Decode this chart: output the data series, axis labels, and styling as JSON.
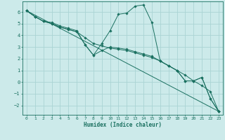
{
  "xlabel": "Humidex (Indice chaleur)",
  "bg_color": "#cceaea",
  "grid_color": "#aad4d4",
  "line_color": "#1a7060",
  "xlim": [
    -0.5,
    23.5
  ],
  "ylim": [
    -2.8,
    6.9
  ],
  "xticks": [
    0,
    1,
    2,
    3,
    4,
    5,
    6,
    7,
    8,
    9,
    10,
    11,
    12,
    13,
    14,
    15,
    16,
    17,
    18,
    19,
    20,
    21,
    22,
    23
  ],
  "yticks": [
    -2,
    -1,
    0,
    1,
    2,
    3,
    4,
    5,
    6
  ],
  "series": [
    {
      "x": [
        0,
        1,
        2,
        3,
        4,
        5,
        6,
        7,
        8,
        9,
        10,
        11,
        12,
        13,
        14,
        15,
        16,
        17,
        18,
        19,
        20,
        21,
        22,
        23
      ],
      "y": [
        6.1,
        5.6,
        5.2,
        5.1,
        4.8,
        4.6,
        4.4,
        3.2,
        2.3,
        3.3,
        4.4,
        5.8,
        5.9,
        6.5,
        6.6,
        5.1,
        1.8,
        1.4,
        1.0,
        0.1,
        0.1,
        0.4,
        -1.4,
        -2.5
      ]
    },
    {
      "x": [
        0,
        1,
        2,
        3,
        4,
        5,
        6,
        7,
        8,
        9,
        10,
        11,
        12,
        13,
        14,
        15,
        16,
        17,
        18,
        19,
        20,
        21,
        22,
        23
      ],
      "y": [
        6.1,
        5.6,
        5.2,
        5.0,
        4.7,
        4.5,
        4.3,
        3.8,
        3.3,
        3.1,
        2.9,
        2.8,
        2.7,
        2.5,
        2.3,
        2.1,
        1.8,
        1.4,
        1.0,
        0.6,
        0.1,
        -0.3,
        -0.8,
        -2.5
      ]
    },
    {
      "x": [
        0,
        1,
        2,
        3,
        4,
        5,
        6,
        7,
        8,
        9,
        10,
        11,
        12,
        13,
        14,
        15,
        16,
        17,
        18,
        19,
        20,
        21,
        22,
        23
      ],
      "y": [
        6.1,
        5.6,
        5.2,
        5.0,
        4.7,
        4.5,
        4.3,
        3.2,
        2.3,
        2.7,
        3.0,
        2.9,
        2.8,
        2.6,
        2.4,
        2.2,
        1.8,
        1.4,
        1.0,
        0.1,
        0.1,
        0.4,
        -1.4,
        -2.5
      ]
    },
    {
      "x": [
        0,
        23
      ],
      "y": [
        6.1,
        -2.5
      ]
    }
  ]
}
